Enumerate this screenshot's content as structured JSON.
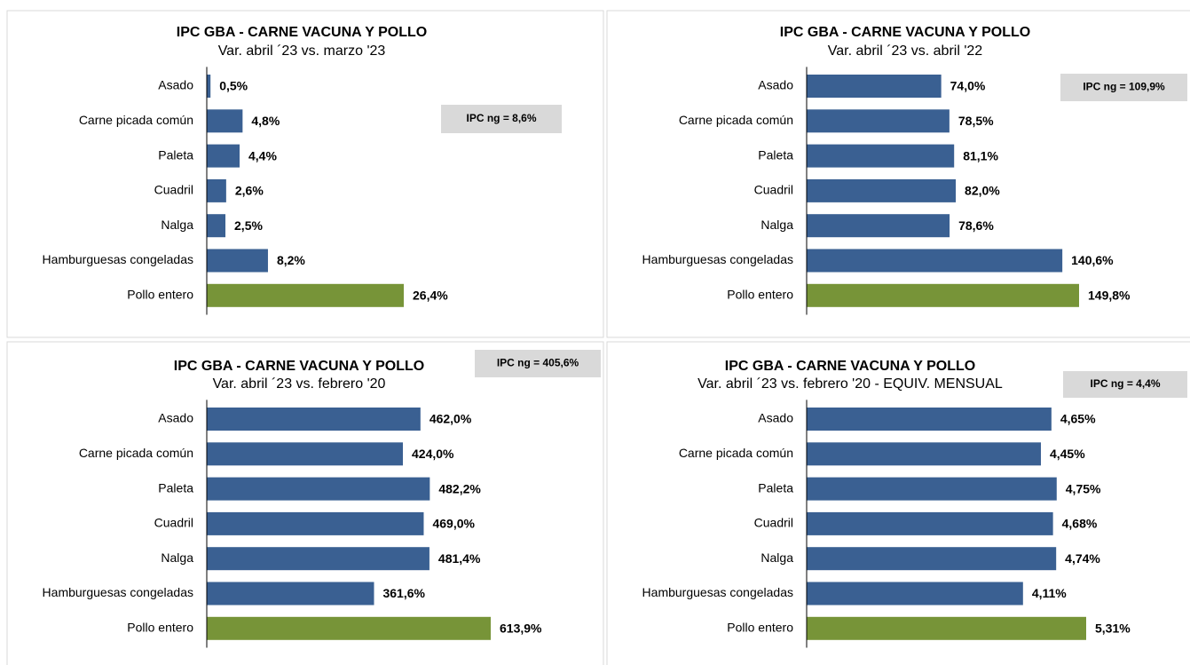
{
  "chart_data": [
    {
      "type": "bar",
      "orientation": "horizontal",
      "title": "IPC GBA - CARNE VACUNA Y POLLO",
      "subtitle": "Var. abril ´23 vs. marzo '23",
      "categories": [
        "Asado",
        "Carne picada común",
        "Paleta",
        "Cuadril",
        "Nalga",
        "Hamburguesas congeladas",
        "Pollo entero"
      ],
      "values": [
        0.5,
        4.8,
        4.4,
        2.6,
        2.5,
        8.2,
        26.4
      ],
      "value_labels": [
        "0,5%",
        "4,8%",
        "4,4%",
        "2,6%",
        "2,5%",
        "8,2%",
        "26,4%"
      ],
      "colors": [
        "#3a6092",
        "#3a6092",
        "#3a6092",
        "#3a6092",
        "#3a6092",
        "#3a6092",
        "#779438"
      ],
      "annotation": "IPC ng = 8,6%"
    },
    {
      "type": "bar",
      "orientation": "horizontal",
      "title": "IPC GBA - CARNE VACUNA Y POLLO",
      "subtitle": "Var. abril ´23 vs. abril '22",
      "categories": [
        "Asado",
        "Carne picada común",
        "Paleta",
        "Cuadril",
        "Nalga",
        "Hamburguesas congeladas",
        "Pollo entero"
      ],
      "values": [
        74.0,
        78.5,
        81.1,
        82.0,
        78.6,
        140.6,
        149.8
      ],
      "value_labels": [
        "74,0%",
        "78,5%",
        "81,1%",
        "82,0%",
        "78,6%",
        "140,6%",
        "149,8%"
      ],
      "colors": [
        "#3a6092",
        "#3a6092",
        "#3a6092",
        "#3a6092",
        "#3a6092",
        "#3a6092",
        "#779438"
      ],
      "annotation": "IPC ng = 109,9%"
    },
    {
      "type": "bar",
      "orientation": "horizontal",
      "title": "IPC GBA - CARNE VACUNA Y POLLO",
      "subtitle": "Var. abril ´23 vs. febrero '20",
      "categories": [
        "Asado",
        "Carne picada común",
        "Paleta",
        "Cuadril",
        "Nalga",
        "Hamburguesas congeladas",
        "Pollo entero"
      ],
      "values": [
        462.0,
        424.0,
        482.2,
        469.0,
        481.4,
        361.6,
        613.9
      ],
      "value_labels": [
        "462,0%",
        "424,0%",
        "482,2%",
        "469,0%",
        "481,4%",
        "361,6%",
        "613,9%"
      ],
      "colors": [
        "#3a6092",
        "#3a6092",
        "#3a6092",
        "#3a6092",
        "#3a6092",
        "#3a6092",
        "#779438"
      ],
      "annotation": "IPC ng = 405,6%"
    },
    {
      "type": "bar",
      "orientation": "horizontal",
      "title": "IPC GBA - CARNE VACUNA Y POLLO",
      "subtitle": "Var. abril ´23 vs. febrero '20 - EQUIV. MENSUAL",
      "categories": [
        "Asado",
        "Carne picada común",
        "Paleta",
        "Cuadril",
        "Nalga",
        "Hamburguesas congeladas",
        "Pollo entero"
      ],
      "values": [
        4.65,
        4.45,
        4.75,
        4.68,
        4.74,
        4.11,
        5.31
      ],
      "value_labels": [
        "4,65%",
        "4,45%",
        "4,75%",
        "4,68%",
        "4,74%",
        "4,11%",
        "5,31%"
      ],
      "colors": [
        "#3a6092",
        "#3a6092",
        "#3a6092",
        "#3a6092",
        "#3a6092",
        "#3a6092",
        "#779438"
      ],
      "annotation": "IPC ng = 4,4%"
    }
  ]
}
